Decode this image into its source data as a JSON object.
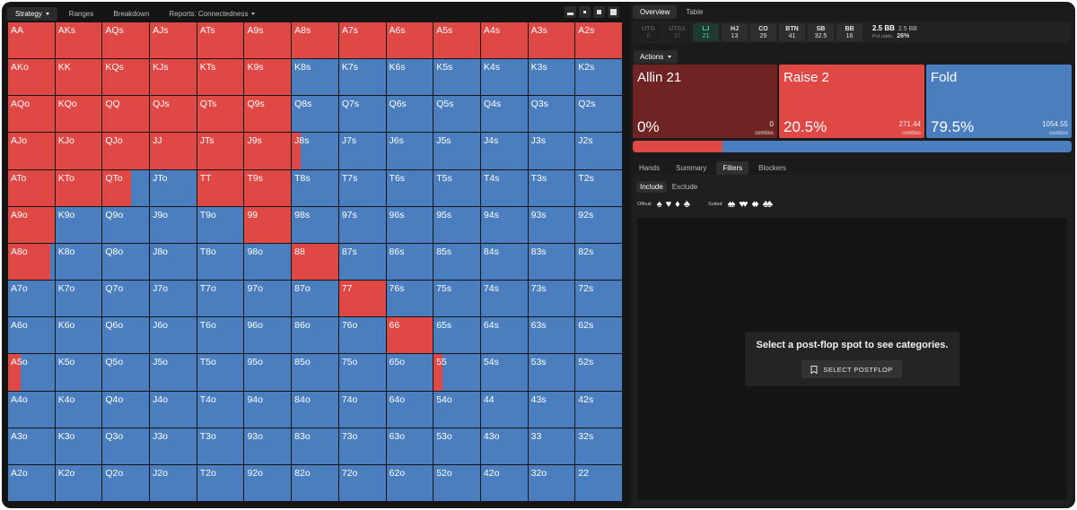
{
  "nav": {
    "tabs": [
      {
        "label": "Strategy",
        "active": true,
        "dropdown": true
      },
      {
        "label": "Ranges",
        "active": false,
        "dropdown": false
      },
      {
        "label": "Breakdown",
        "active": false,
        "dropdown": false
      },
      {
        "label": "Reports: Connectedness",
        "active": false,
        "dropdown": true
      }
    ],
    "view_icons": [
      "layout-split-icon",
      "grid-small-icon",
      "grid-medium-icon",
      "square-full-icon"
    ]
  },
  "hands": [
    [
      "AA",
      "AKs",
      "AQs",
      "AJs",
      "ATs",
      "A9s",
      "A8s",
      "A7s",
      "A6s",
      "A5s",
      "A4s",
      "A3s",
      "A2s"
    ],
    [
      "AKo",
      "KK",
      "KQs",
      "KJs",
      "KTs",
      "K9s",
      "K8s",
      "K7s",
      "K6s",
      "K5s",
      "K4s",
      "K3s",
      "K2s"
    ],
    [
      "AQo",
      "KQo",
      "QQ",
      "QJs",
      "QTs",
      "Q9s",
      "Q8s",
      "Q7s",
      "Q6s",
      "Q5s",
      "Q4s",
      "Q3s",
      "Q2s"
    ],
    [
      "AJo",
      "KJo",
      "QJo",
      "JJ",
      "JTs",
      "J9s",
      "J8s",
      "J7s",
      "J6s",
      "J5s",
      "J4s",
      "J3s",
      "J2s"
    ],
    [
      "ATo",
      "KTo",
      "QTo",
      "JTo",
      "TT",
      "T9s",
      "T8s",
      "T7s",
      "T6s",
      "T5s",
      "T4s",
      "T3s",
      "T2s"
    ],
    [
      "A9o",
      "K9o",
      "Q9o",
      "J9o",
      "T9o",
      "99",
      "98s",
      "97s",
      "96s",
      "95s",
      "94s",
      "93s",
      "92s"
    ],
    [
      "A8o",
      "K8o",
      "Q8o",
      "J8o",
      "T8o",
      "98o",
      "88",
      "87s",
      "86s",
      "85s",
      "84s",
      "83s",
      "82s"
    ],
    [
      "A7o",
      "K7o",
      "Q7o",
      "J7o",
      "T7o",
      "97o",
      "87o",
      "77",
      "76s",
      "75s",
      "74s",
      "73s",
      "72s"
    ],
    [
      "A6o",
      "K6o",
      "Q6o",
      "J6o",
      "T6o",
      "96o",
      "86o",
      "76o",
      "66",
      "65s",
      "64s",
      "63s",
      "62s"
    ],
    [
      "A5o",
      "K5o",
      "Q5o",
      "J5o",
      "T5o",
      "95o",
      "85o",
      "75o",
      "65o",
      "55",
      "54s",
      "53s",
      "52s"
    ],
    [
      "A4o",
      "K4o",
      "Q4o",
      "J4o",
      "T4o",
      "94o",
      "84o",
      "74o",
      "64o",
      "54o",
      "44",
      "43s",
      "42s"
    ],
    [
      "A3o",
      "K3o",
      "Q3o",
      "J3o",
      "T3o",
      "93o",
      "83o",
      "73o",
      "63o",
      "53o",
      "43o",
      "33",
      "32s"
    ],
    [
      "A2o",
      "K2o",
      "Q2o",
      "J2o",
      "T2o",
      "92o",
      "82o",
      "72o",
      "62o",
      "52o",
      "42o",
      "32o",
      "22"
    ]
  ],
  "raise_freq": [
    [
      1,
      1,
      1,
      1,
      1,
      1,
      1,
      1,
      1,
      1,
      1,
      1,
      1
    ],
    [
      1,
      1,
      1,
      1,
      1,
      1,
      0,
      0,
      0,
      0,
      0,
      0,
      0
    ],
    [
      1,
      1,
      1,
      1,
      1,
      1,
      0,
      0,
      0,
      0,
      0,
      0,
      0
    ],
    [
      1,
      1,
      1,
      1,
      1,
      1,
      0.2,
      0,
      0,
      0,
      0,
      0,
      0
    ],
    [
      1,
      1,
      0.62,
      0,
      1,
      1,
      0,
      0,
      0,
      0,
      0,
      0,
      0
    ],
    [
      1,
      0,
      0,
      0,
      0,
      1,
      0,
      0,
      0,
      0,
      0,
      0,
      0
    ],
    [
      0.9,
      0,
      0,
      0,
      0,
      0,
      1,
      0,
      0,
      0,
      0,
      0,
      0
    ],
    [
      0,
      0,
      0,
      0,
      0,
      0,
      0,
      1,
      0,
      0,
      0,
      0,
      0
    ],
    [
      0,
      0,
      0,
      0,
      0,
      0,
      0,
      0,
      1,
      0,
      0,
      0,
      0
    ],
    [
      0.28,
      0,
      0,
      0,
      0,
      0,
      0,
      0,
      0,
      0.18,
      0,
      0,
      0
    ],
    [
      0,
      0,
      0,
      0,
      0,
      0,
      0,
      0,
      0,
      0,
      0,
      0,
      0
    ],
    [
      0,
      0,
      0,
      0,
      0,
      0,
      0,
      0,
      0,
      0,
      0,
      0,
      0
    ],
    [
      0,
      0,
      0,
      0,
      0,
      0,
      0,
      0,
      0,
      0,
      0,
      0,
      0
    ]
  ],
  "right_tabs": [
    {
      "label": "Overview",
      "active": true
    },
    {
      "label": "Table",
      "active": false
    }
  ],
  "positions": [
    {
      "name": "UTG",
      "value": "0",
      "state": "dim"
    },
    {
      "name": "UTG1",
      "value": "37",
      "state": "dim"
    },
    {
      "name": "LJ",
      "value": "21",
      "state": "active"
    },
    {
      "name": "HJ",
      "value": "13",
      "state": "normal"
    },
    {
      "name": "CO",
      "value": "29",
      "state": "normal"
    },
    {
      "name": "BTN",
      "value": "41",
      "state": "normal"
    },
    {
      "name": "SB",
      "value": "32.5",
      "state": "normal"
    },
    {
      "name": "BB",
      "value": "16",
      "state": "normal"
    }
  ],
  "pot": {
    "main": "2.5 BB",
    "sub": "2.5 BB",
    "odds_label": "Pot odds:",
    "odds": "26%"
  },
  "actions_label": "Actions",
  "actions": [
    {
      "name": "Allin 21",
      "pct": "0%",
      "combos": "0",
      "combos_label": "combos",
      "freq": 0.0,
      "color": "#6f2322"
    },
    {
      "name": "Raise 2",
      "pct": "20.5%",
      "combos": "271.44",
      "combos_label": "combos",
      "freq": 0.205,
      "color": "#e04846"
    },
    {
      "name": "Fold",
      "pct": "79.5%",
      "combos": "1054.55",
      "combos_label": "combos",
      "freq": 0.795,
      "color": "#4a7ebf"
    }
  ],
  "sub_tabs": [
    {
      "label": "Hands",
      "active": false
    },
    {
      "label": "Summary",
      "active": false
    },
    {
      "label": "Filters",
      "active": true
    },
    {
      "label": "Blockers",
      "active": false
    }
  ],
  "filter": {
    "include": "Include",
    "exclude": "Exclude",
    "offsuit_label": "Offsuit",
    "suited_label": "Suited"
  },
  "category": {
    "message": "Select a post-flop spot to see categories.",
    "button": "SELECT POSTFLOP"
  }
}
